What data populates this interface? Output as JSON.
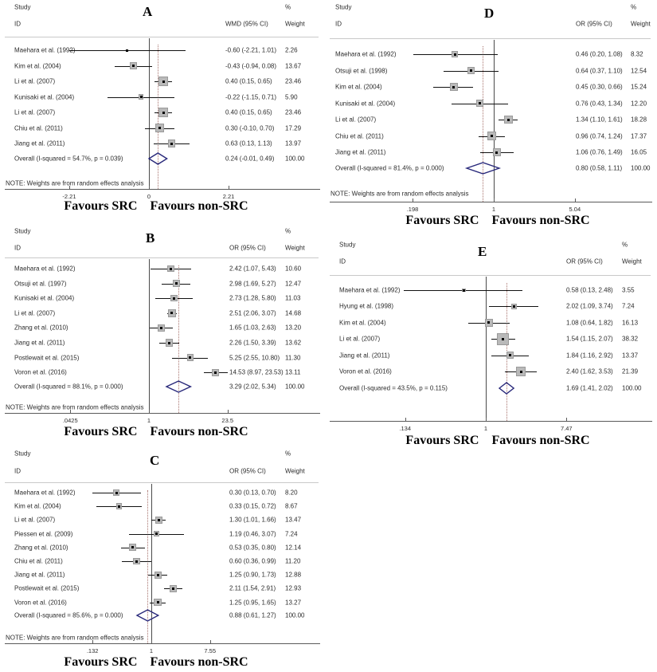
{
  "figure": {
    "headers": {
      "study": "Study",
      "id": "ID",
      "pct": "%",
      "weight": "Weight"
    },
    "note": "NOTE: Weights are from random effects analysis",
    "favours_left": "Favours  SRC",
    "favours_right": "Favours  non-SRC",
    "colors": {
      "diamond_outline": "#28287a",
      "weight_box": "#b9b9b9",
      "ci_line": "#111111",
      "null_line": "#4a4a4a",
      "overall_dashed_line": "#a8736d",
      "header_rule": "#c9c9c9",
      "axis_line": "#5a5a5a"
    }
  },
  "chart_data": [
    {
      "type": "forest",
      "id": "A",
      "letter": "A",
      "effect_label": "WMD (95% CI)",
      "axis": {
        "scale": "linear",
        "null_value": 0,
        "ticks": [
          {
            "label": "-2.21",
            "value": -2.21
          },
          {
            "label": "0",
            "value": 0
          },
          {
            "label": "2.21",
            "value": 2.21
          }
        ]
      },
      "rows": [
        {
          "study": "Maehara et al. (1992)",
          "ci": "-0.60 (-2.21, 1.01)",
          "weight": "2.26",
          "est": -0.6,
          "lo": -2.21,
          "hi": 1.01
        },
        {
          "study": "Kim et al. (2004)",
          "ci": "-0.43 (-0.94, 0.08)",
          "weight": "13.67",
          "est": -0.43,
          "lo": -0.94,
          "hi": 0.08
        },
        {
          "study": "Li et al. (2007)",
          "ci": "0.40 (0.15, 0.65)",
          "weight": "23.46",
          "est": 0.4,
          "lo": 0.15,
          "hi": 0.65
        },
        {
          "study": "Kunisaki et al. (2004)",
          "ci": "-0.22 (-1.15, 0.71)",
          "weight": "5.90",
          "est": -0.22,
          "lo": -1.15,
          "hi": 0.71
        },
        {
          "study": "Li et al. (2007)",
          "ci": "0.40 (0.15, 0.65)",
          "weight": "23.46",
          "est": 0.4,
          "lo": 0.15,
          "hi": 0.65
        },
        {
          "study": "Chiu et al. (2011)",
          "ci": "0.30 (-0.10, 0.70)",
          "weight": "17.29",
          "est": 0.3,
          "lo": -0.1,
          "hi": 0.7
        },
        {
          "study": "Jiang et al. (2011)",
          "ci": "0.63 (0.13, 1.13)",
          "weight": "13.97",
          "est": 0.63,
          "lo": 0.13,
          "hi": 1.13
        }
      ],
      "overall": {
        "study": "Overall  (I-squared = 54.7%, p = 0.039)",
        "ci": "0.24 (-0.01, 0.49)",
        "weight": "100.00",
        "est": 0.24,
        "lo": -0.01,
        "hi": 0.49
      },
      "show_note": true
    },
    {
      "type": "forest",
      "id": "B",
      "letter": "B",
      "effect_label": "OR (95% CI)",
      "axis": {
        "scale": "log",
        "null_value": 1,
        "ticks": [
          {
            "label": ".0425",
            "value": 0.0425
          },
          {
            "label": "1",
            "value": 1
          },
          {
            "label": "23.5",
            "value": 23.5
          }
        ]
      },
      "rows": [
        {
          "study": "Maehara et al. (1992)",
          "ci": "2.42 (1.07, 5.43)",
          "weight": "10.60",
          "est": 2.42,
          "lo": 1.07,
          "hi": 5.43
        },
        {
          "study": "Otsuji et al. (1997)",
          "ci": "2.98 (1.69, 5.27)",
          "weight": "12.47",
          "est": 2.98,
          "lo": 1.69,
          "hi": 5.27
        },
        {
          "study": "Kunisaki et al. (2004)",
          "ci": "2.73 (1.28, 5.80)",
          "weight": "11.03",
          "est": 2.73,
          "lo": 1.28,
          "hi": 5.8
        },
        {
          "study": "Li et al. (2007)",
          "ci": "2.51 (2.06, 3.07)",
          "weight": "14.68",
          "est": 2.51,
          "lo": 2.06,
          "hi": 3.07
        },
        {
          "study": "Zhang et al. (2010)",
          "ci": "1.65 (1.03, 2.63)",
          "weight": "13.20",
          "est": 1.65,
          "lo": 1.03,
          "hi": 2.63
        },
        {
          "study": "Jiang et al. (2011)",
          "ci": "2.26 (1.50, 3.39)",
          "weight": "13.62",
          "est": 2.26,
          "lo": 1.5,
          "hi": 3.39
        },
        {
          "study": "Postlewait et al. (2015)",
          "ci": "5.25 (2.55, 10.80)",
          "weight": "11.30",
          "est": 5.25,
          "lo": 2.55,
          "hi": 10.8
        },
        {
          "study": "Voron et al. (2016)",
          "ci": "14.53 (8.97, 23.53)",
          "weight": "13.11",
          "est": 14.53,
          "lo": 8.97,
          "hi": 23.53
        }
      ],
      "overall": {
        "study": "Overall  (I-squared = 88.1%, p = 0.000)",
        "ci": "3.29 (2.02, 5.34)",
        "weight": "100.00",
        "est": 3.29,
        "lo": 2.02,
        "hi": 5.34
      },
      "show_note": true
    },
    {
      "type": "forest",
      "id": "C",
      "letter": "C",
      "effect_label": "OR (95% CI)",
      "axis": {
        "scale": "log",
        "null_value": 1,
        "ticks": [
          {
            "label": ".132",
            "value": 0.132
          },
          {
            "label": "1",
            "value": 1
          },
          {
            "label": "7.55",
            "value": 7.55
          }
        ]
      },
      "rows": [
        {
          "study": "Maehara et al. (1992)",
          "ci": "0.30 (0.13, 0.70)",
          "weight": "8.20",
          "est": 0.3,
          "lo": 0.13,
          "hi": 0.7
        },
        {
          "study": "Kim et al. (2004)",
          "ci": "0.33 (0.15, 0.72)",
          "weight": "8.67",
          "est": 0.33,
          "lo": 0.15,
          "hi": 0.72
        },
        {
          "study": "Li et al. (2007)",
          "ci": "1.30 (1.01, 1.66)",
          "weight": "13.47",
          "est": 1.3,
          "lo": 1.01,
          "hi": 1.66
        },
        {
          "study": "Piessen et al. (2009)",
          "ci": "1.19 (0.46, 3.07)",
          "weight": "7.24",
          "est": 1.19,
          "lo": 0.46,
          "hi": 3.07
        },
        {
          "study": "Zhang et al. (2010)",
          "ci": "0.53 (0.35, 0.80)",
          "weight": "12.14",
          "est": 0.53,
          "lo": 0.35,
          "hi": 0.8
        },
        {
          "study": "Chiu et al. (2011)",
          "ci": "0.60 (0.36, 0.99)",
          "weight": "11.20",
          "est": 0.6,
          "lo": 0.36,
          "hi": 0.99
        },
        {
          "study": "Jiang et al. (2011)",
          "ci": "1.25 (0.90, 1.73)",
          "weight": "12.88",
          "est": 1.25,
          "lo": 0.9,
          "hi": 1.73
        },
        {
          "study": "Postlewait et al. (2015)",
          "ci": "2.11 (1.54, 2.91)",
          "weight": "12.93",
          "est": 2.11,
          "lo": 1.54,
          "hi": 2.91
        },
        {
          "study": "Voron et al. (2016)",
          "ci": "1.25 (0.95, 1.65)",
          "weight": "13.27",
          "est": 1.25,
          "lo": 0.95,
          "hi": 1.65
        }
      ],
      "overall": {
        "study": "Overall  (I-squared = 85.6%, p = 0.000)",
        "ci": "0.88 (0.61, 1.27)",
        "weight": "100.00",
        "est": 0.88,
        "lo": 0.61,
        "hi": 1.27
      },
      "show_note": true
    },
    {
      "type": "forest",
      "id": "D",
      "letter": "D",
      "effect_label": "OR (95% CI)",
      "axis": {
        "scale": "log",
        "null_value": 1,
        "ticks": [
          {
            "label": ".198",
            "value": 0.198
          },
          {
            "label": "1",
            "value": 1
          },
          {
            "label": "5.04",
            "value": 5.04
          }
        ]
      },
      "rows": [
        {
          "study": "Maehara et al. (1992)",
          "ci": "0.46 (0.20, 1.08)",
          "weight": "8.32",
          "est": 0.46,
          "lo": 0.2,
          "hi": 1.08
        },
        {
          "study": "Otsuji et al. (1998)",
          "ci": "0.64 (0.37, 1.10)",
          "weight": "12.54",
          "est": 0.64,
          "lo": 0.37,
          "hi": 1.1
        },
        {
          "study": "Kim et al. (2004)",
          "ci": "0.45 (0.30, 0.66)",
          "weight": "15.24",
          "est": 0.45,
          "lo": 0.3,
          "hi": 0.66
        },
        {
          "study": "Kunisaki et al. (2004)",
          "ci": "0.76 (0.43, 1.34)",
          "weight": "12.20",
          "est": 0.76,
          "lo": 0.43,
          "hi": 1.34
        },
        {
          "study": "Li et al. (2007)",
          "ci": "1.34 (1.10, 1.61)",
          "weight": "18.28",
          "est": 1.34,
          "lo": 1.1,
          "hi": 1.61
        },
        {
          "study": "Chiu et al. (2011)",
          "ci": "0.96 (0.74, 1.24)",
          "weight": "17.37",
          "est": 0.96,
          "lo": 0.74,
          "hi": 1.24
        },
        {
          "study": "Jiang et al. (2011)",
          "ci": "1.06 (0.76, 1.49)",
          "weight": "16.05",
          "est": 1.06,
          "lo": 0.76,
          "hi": 1.49
        }
      ],
      "overall": {
        "study": "Overall  (I-squared = 81.4%, p = 0.000)",
        "ci": "0.80 (0.58, 1.11)",
        "weight": "100.00",
        "est": 0.8,
        "lo": 0.58,
        "hi": 1.11
      },
      "show_note": true
    },
    {
      "type": "forest",
      "id": "E",
      "letter": "E",
      "effect_label": "OR (95% CI)",
      "axis": {
        "scale": "log",
        "null_value": 1,
        "ticks": [
          {
            "label": ".134",
            "value": 0.134
          },
          {
            "label": "1",
            "value": 1
          },
          {
            "label": "7.47",
            "value": 7.47
          }
        ]
      },
      "rows": [
        {
          "study": "Maehara et al. (1992)",
          "ci": "0.58 (0.13, 2.48)",
          "weight": "3.55",
          "est": 0.58,
          "lo": 0.13,
          "hi": 2.48
        },
        {
          "study": "Hyung et al. (1998)",
          "ci": "2.02 (1.09, 3.74)",
          "weight": "7.24",
          "est": 2.02,
          "lo": 1.09,
          "hi": 3.74
        },
        {
          "study": "Kim et al. (2004)",
          "ci": "1.08 (0.64, 1.82)",
          "weight": "16.13",
          "est": 1.08,
          "lo": 0.64,
          "hi": 1.82
        },
        {
          "study": "Li et al. (2007)",
          "ci": "1.54 (1.15, 2.07)",
          "weight": "38.32",
          "est": 1.54,
          "lo": 1.15,
          "hi": 2.07
        },
        {
          "study": "Jiang et al. (2011)",
          "ci": "1.84 (1.16, 2.92)",
          "weight": "13.37",
          "est": 1.84,
          "lo": 1.16,
          "hi": 2.92
        },
        {
          "study": "Voron et al. (2016)",
          "ci": "2.40 (1.62, 3.53)",
          "weight": "21.39",
          "est": 2.4,
          "lo": 1.62,
          "hi": 3.53
        }
      ],
      "overall": {
        "study": "Overall  (I-squared = 43.5%, p = 0.115)",
        "ci": "1.69 (1.41, 2.02)",
        "weight": "100.00",
        "est": 1.69,
        "lo": 1.41,
        "hi": 2.02
      },
      "show_note": false
    }
  ]
}
